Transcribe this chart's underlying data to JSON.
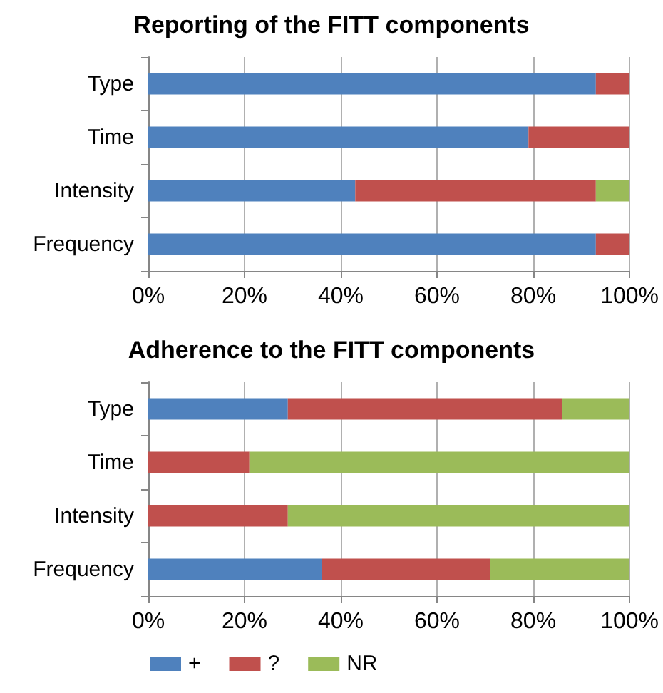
{
  "chart_data": [
    {
      "type": "bar",
      "orientation": "horizontal",
      "stacked": true,
      "title": "Reporting of the FITT components",
      "categories": [
        "Type",
        "Time",
        "Intensity",
        "Frequency"
      ],
      "series": [
        {
          "color": "#4f81bd",
          "values": [
            93,
            79,
            43,
            93
          ]
        },
        {
          "color": "#c0504d",
          "values": [
            7,
            21,
            50,
            7
          ]
        },
        {
          "color": "#9bbb59",
          "values": [
            0,
            0,
            7,
            0
          ]
        }
      ],
      "xlim": [
        0,
        100
      ],
      "xticks": [
        {
          "value": 0,
          "label": "0%"
        },
        {
          "value": 20,
          "label": "20%"
        },
        {
          "value": 40,
          "label": "40%"
        },
        {
          "value": 60,
          "label": "60%"
        },
        {
          "value": 80,
          "label": "80%"
        },
        {
          "value": 100,
          "label": "100%"
        }
      ],
      "grid": "x",
      "legend": false
    },
    {
      "type": "bar",
      "orientation": "horizontal",
      "stacked": true,
      "title": "Adherence to the FITT components",
      "categories": [
        "Type",
        "Time",
        "Intensity",
        "Frequency"
      ],
      "series": [
        {
          "name": "+",
          "color": "#4f81bd",
          "values": [
            29,
            0,
            0,
            36
          ]
        },
        {
          "name": "?",
          "color": "#c0504d",
          "values": [
            57,
            21,
            29,
            35
          ]
        },
        {
          "name": "NR",
          "color": "#9bbb59",
          "values": [
            14,
            79,
            71,
            29
          ]
        }
      ],
      "xlim": [
        0,
        100
      ],
      "xticks": [
        {
          "value": 0,
          "label": "0%"
        },
        {
          "value": 20,
          "label": "20%"
        },
        {
          "value": 40,
          "label": "40%"
        },
        {
          "value": 60,
          "label": "60%"
        },
        {
          "value": 80,
          "label": "80%"
        },
        {
          "value": 100,
          "label": "100%"
        }
      ],
      "grid": "x",
      "legend": "bottom left"
    }
  ]
}
